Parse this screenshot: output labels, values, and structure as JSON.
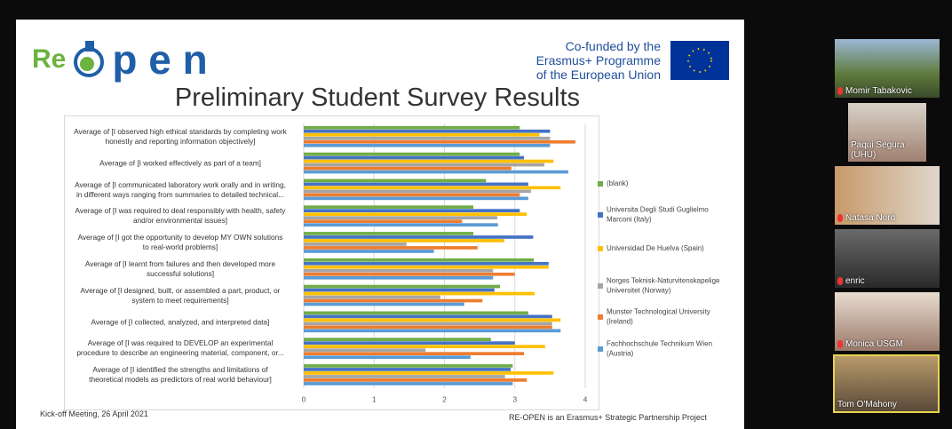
{
  "slide": {
    "logo_prefix": "Re",
    "logo_suffix": "p e n",
    "funding": "Co-funded by the\nErasmus+ Programme\nof the European Union",
    "title": "Preliminary Student Survey Results",
    "footer_left": "Kick-off Meeting, 26 April 2021",
    "footer_right": "RE-OPEN is an Erasmus+ Strategic Partnership Project"
  },
  "chart_data": {
    "type": "hbar",
    "categories": [
      "Average of [I observed high ethical standards by completing work\nhonestly and reporting information objectively]",
      "Average of [I worked effectively as part of a team]",
      "Average of [I communicated laboratory work orally and in writing,\nin different ways ranging from summaries to detailed technical...",
      "Average of [I was required to deal responsibly with health, safety\nand/or environmental issues]",
      "Average of [I got the opportunity to develop MY OWN solutions\nto real-world problems]",
      "Average of [I learnt from failures and then developed more\nsuccessful solutions]",
      "Average of [I designed, built, or assembled a part, product, or\nsystem to meet requirements]",
      "Average of [I collected, analyzed, and interpreted data]",
      "Average of [I was required to DEVELOP an experimental\nprocedure to describe an engineering material, component, or...",
      "Average of [I identified the strengths and limitations of\ntheoretical models as predictors of real world behaviour]"
    ],
    "series": [
      {
        "name": "(blank)",
        "color": "#70ad47",
        "values": [
          3.07,
          3.07,
          2.59,
          2.41,
          2.41,
          3.27,
          2.79,
          3.19,
          2.66,
          2.97
        ]
      },
      {
        "name": "Universita Degli Studi Guglielmo Marconi (Italy)",
        "color": "#4472c4",
        "values": [
          3.5,
          3.13,
          3.19,
          3.07,
          3.26,
          3.48,
          2.71,
          3.53,
          3.0,
          2.94
        ]
      },
      {
        "name": "Universidad De Huelva (Spain)",
        "color": "#ffc000",
        "values": [
          3.35,
          3.55,
          3.65,
          3.17,
          2.85,
          3.48,
          3.28,
          3.65,
          3.43,
          3.55
        ]
      },
      {
        "name": "Norges Teknisk-Naturvitenskapelige Universitet (Norway)",
        "color": "#a5a5a5",
        "values": [
          3.5,
          3.42,
          3.23,
          2.75,
          1.46,
          2.69,
          1.94,
          3.53,
          1.73,
          2.86
        ]
      },
      {
        "name": "Munster Technological University (Ireland)",
        "color": "#ed7d31",
        "values": [
          3.86,
          2.95,
          3.07,
          2.25,
          2.47,
          3.0,
          2.54,
          3.53,
          3.13,
          3.17
        ]
      },
      {
        "name": "Fachhochschule Technikum Wien (Austria)",
        "color": "#5b9bd5",
        "values": [
          3.5,
          3.76,
          3.19,
          2.76,
          1.85,
          2.69,
          2.28,
          3.65,
          2.37,
          2.97
        ]
      }
    ],
    "xlim": [
      0,
      4
    ],
    "xticks": [
      0,
      1,
      2,
      3,
      4
    ],
    "grid": true
  },
  "participants": [
    {
      "name": "Momir Tabakovic",
      "muted": true
    },
    {
      "name": "Paqui Segura (UHU)",
      "muted": false
    },
    {
      "name": "Natasa Nord",
      "muted": true
    },
    {
      "name": "enric",
      "muted": true
    },
    {
      "name": "Monica USGM",
      "muted": true
    },
    {
      "name": "Tom O'Mahony",
      "muted": false
    }
  ]
}
